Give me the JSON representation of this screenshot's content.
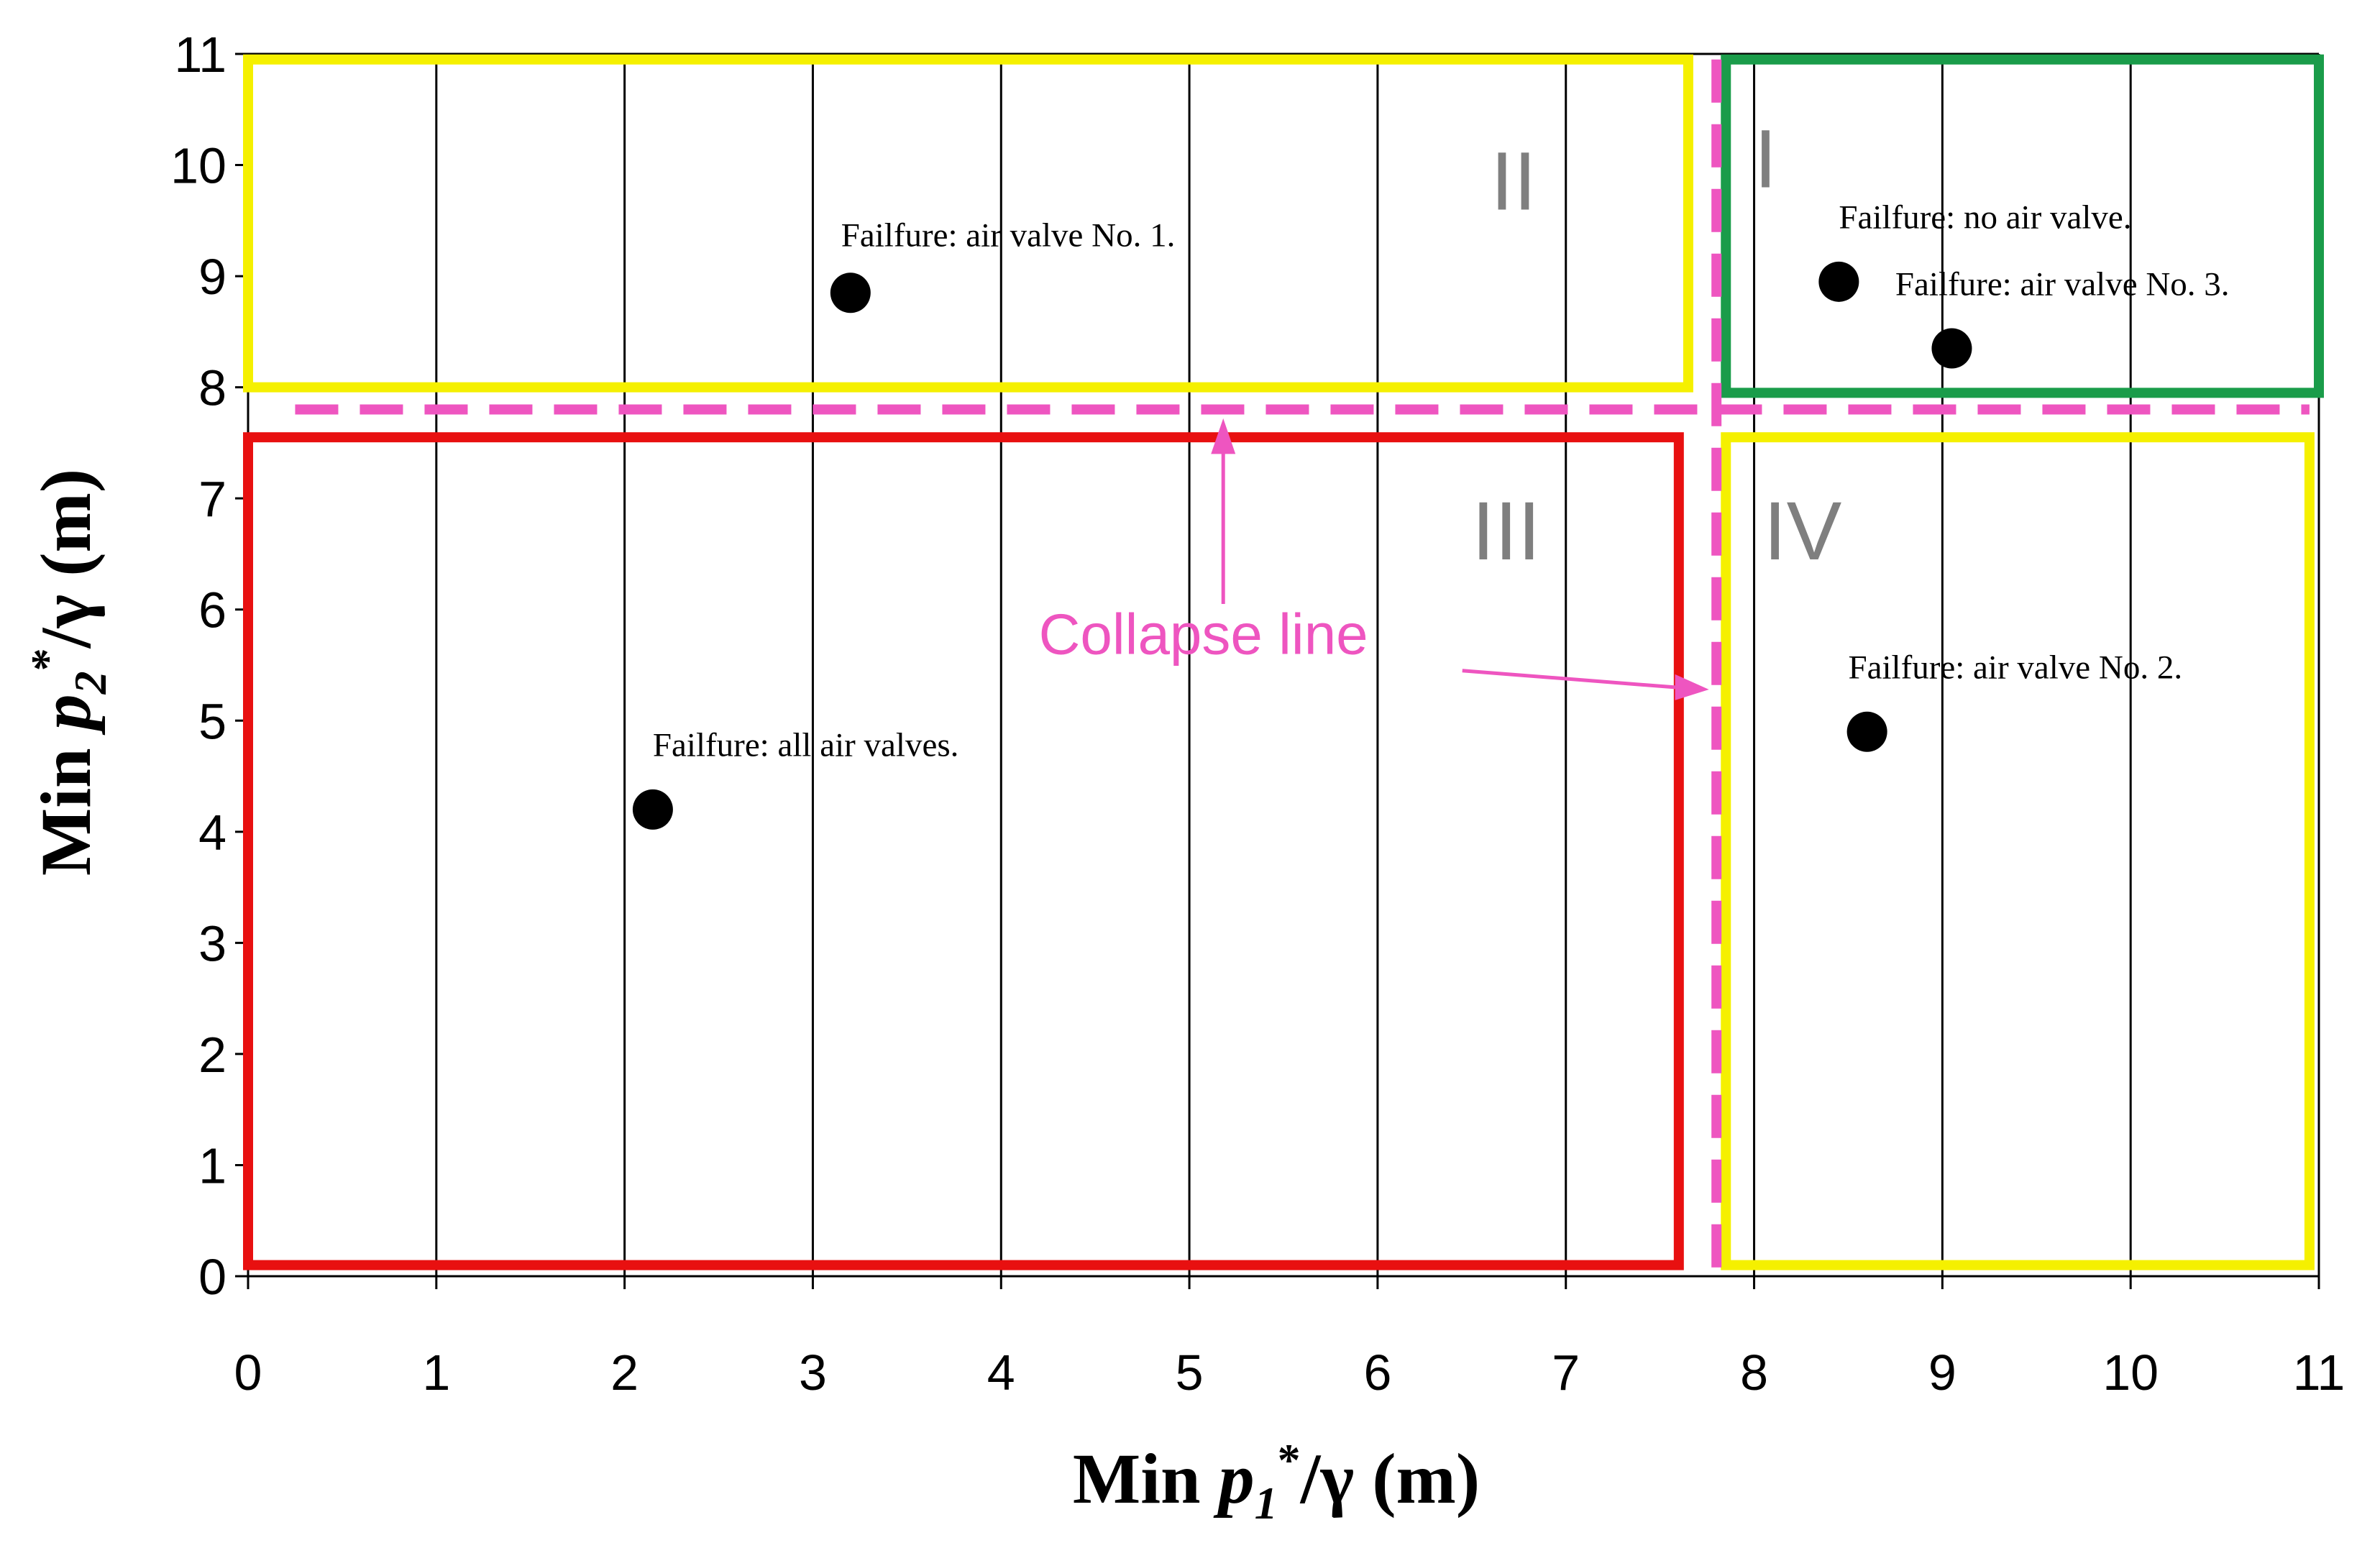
{
  "chart_data": {
    "type": "scatter",
    "title": "",
    "xlabel": {
      "prefix": "Min ",
      "var": "p",
      "sub": "1",
      "sup": "*",
      "suffix": "/γ  (m)"
    },
    "ylabel": {
      "prefix": "Min ",
      "var": "p",
      "sub": "2",
      "sup": "*",
      "suffix": "/γ  (m)"
    },
    "xlim": [
      0,
      11
    ],
    "ylim": [
      0,
      11
    ],
    "xticks": [
      0,
      1,
      2,
      3,
      4,
      5,
      6,
      7,
      8,
      9,
      10,
      11
    ],
    "yticks": [
      0,
      1,
      2,
      3,
      4,
      5,
      6,
      7,
      8,
      9,
      10,
      11
    ],
    "grid": {
      "vertical": true,
      "horizontal": false
    },
    "points": [
      {
        "x": 3.2,
        "y": 8.85,
        "label": "Failfure: air valve  No. 1."
      },
      {
        "x": 8.45,
        "y": 8.95,
        "label": "Failfure: no air valve."
      },
      {
        "x": 9.05,
        "y": 8.35,
        "label": "Failfure: air valve No. 3."
      },
      {
        "x": 8.6,
        "y": 4.9,
        "label": "Failfure: air valve No. 2."
      },
      {
        "x": 2.15,
        "y": 4.2,
        "label": "Failfure:  all air valves."
      }
    ],
    "regions": [
      {
        "label": "I",
        "x": [
          7.85,
          11
        ],
        "y": [
          7.95,
          10.95
        ],
        "color": "#1a9c4a"
      },
      {
        "label": "II",
        "x": [
          0,
          7.65
        ],
        "y": [
          8.0,
          10.95
        ],
        "color": "#f5f000"
      },
      {
        "label": "III",
        "x": [
          0,
          7.6
        ],
        "y": [
          0.1,
          7.55
        ],
        "color": "#e81010"
      },
      {
        "label": "IV",
        "x": [
          7.85,
          10.95
        ],
        "y": [
          0.1,
          7.55
        ],
        "color": "#f5f000"
      }
    ],
    "collapse_line": {
      "label": "Collapse line",
      "x": 7.8,
      "y": 7.8,
      "color": "#ee55c0"
    }
  }
}
